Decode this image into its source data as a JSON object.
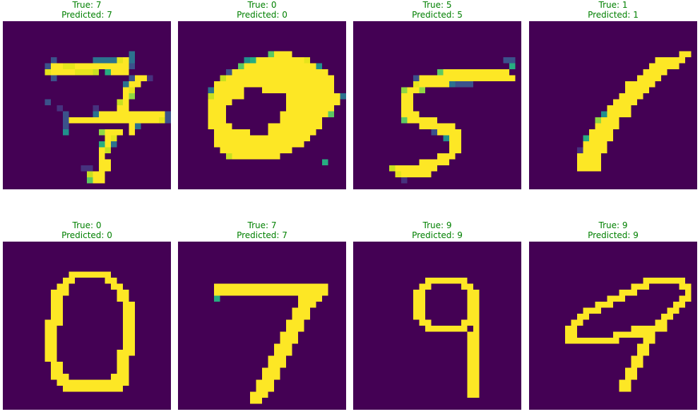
{
  "panels": [
    {
      "true_label": "True: 7",
      "pred_label": "Predicted: 7",
      "rows": [
        "............................",
        "............................",
        "............................",
        "............................",
        "............................",
        ".....................3......",
        "........2......33339#3......",
        ".......2##99#########2......",
        ".......9####9998.5###.......",
        "........2............2##1...",
        "....................3##.....",
        "....................#9......",
        "....................#7......",
        ".......2...........8#.......",
        ".........1.....1...##.......",
        "..........2....3###########2",
        "..........2###############92",
        "..........2..........#3.....",
        "..........4.....7###.#......",
        ".................#9.........",
        "................5#3.........",
        "................#8..........",
        "................#...........",
        "................##..........",
        ".............11.##..........",
        "..............8##...........",
        "..............6##...........",
        "............................"
      ]
    },
    {
      "true_label": "True: 0",
      "pred_label": "Predicted: 0",
      "rows": [
        "............................",
        "............................",
        "............................",
        "............................",
        "............................",
        "...............6###.........",
        "...........45########9......",
        "..........6############4....",
        "........2################...",
        ".......8##################..",
        "......####################..",
        ".....3#####...############..",
        ".....8#####.......#########3",
        ".....####.........#########.",
        ".....###..........########..",
        ".....###.........########6..",
        ".....###.........#######....",
        ".....####......#########....",
        "......######...########.....",
        "......################......",
        "......###############.......",
        ".......############.........",
        "........8########...........",
        "........................5...",
        "............................",
        "............................",
        "............................",
        "............................"
      ]
    },
    {
      "true_label": "True: 5",
      "pred_label": "Predicted: 5",
      "rows": [
        "............................",
        "............................",
        "............................",
        "............................",
        "............................",
        "............................",
        ".........................22.",
        "..........................5.",
        "..............6###########..",
        "..........2################.",
        "..........9#####3222........",
        "........7##7................",
        "........##..................",
        "........##..................",
        "........##..................",
        "........###.................",
        "........6#####..............",
        "...........######...........",
        ".............2####..........",
        "...............4##..........",
        "................##..........",
        "................##..........",
        "..............###...........",
        "...........#####............",
        "......8#######..............",
        ".......9#####...............",
        "........1...................",
        "............................"
      ]
    },
    {
      "true_label": "True: 1",
      "pred_label": "Predicted: 1",
      "rows": [
        "............................",
        "............................",
        "............................",
        "............................",
        "............................",
        ".........................##.",
        ".....................#####..",
        "....................#####...",
        "...................####.....",
        "..................####......",
        "................#####.......",
        "................####........",
        "...............####.........",
        "..............####..........",
        ".............####...........",
        "............4####...........",
        "...........7###.............",
        "...........####.............",
        "..........####..............",
        ".........5####..............",
        ".........####...............",
        "........1####...............",
        "........####................",
        "........####................",
        "........####................",
        "............................",
        "............................",
        "............................"
      ]
    },
    {
      "true_label": "True: 0",
      "pred_label": "Predicted: 0",
      "rows": [
        "............................",
        "............................",
        "............................",
        "............................",
        "............................",
        "...........#######..........",
        "..........##.....##.........",
        ".........##.......##........",
        "........###........##.......",
        "........##.........##.......",
        "........##..........##......",
        "........##..........##......",
        "........##..........##......",
        ".......###..........##......",
        ".......##...........##......",
        ".......##...........##......",
        ".......##...........##......",
        ".......##...........##......",
        ".......##..........###......",
        ".......##..........##.......",
        "........##.........##.......",
        "........##.........##.......",
        "........###.......###.......",
        ".........############.......",
        "..........##########........",
        "............................",
        "............................",
        "............................"
      ]
    },
    {
      "true_label": "True: 7",
      "pred_label": "Predicted: 7",
      "rows": [
        "............................",
        "............................",
        "............................",
        "............................",
        "............................",
        "............................",
        "............................",
        "......###################...",
        "......###################...",
        "......5.............####....",
        "....................###.....",
        "...................###......",
        "...................###......",
        "..................###.......",
        "..................###.......",
        ".................###........",
        ".................###........",
        "................###.........",
        "................###.........",
        "...............###..........",
        "...............###..........",
        "..............###...........",
        "..............###...........",
        ".............###............",
        ".............###............",
        "............###.............",
        "............##..............",
        "............................"
      ]
    },
    {
      "true_label": "True: 9",
      "pred_label": "Predicted: 9",
      "rows": [
        "............................",
        "............................",
        "............................",
        "............................",
        "............................",
        "............................",
        "............#######.........",
        "...........##.....##........",
        "..........##.......##.......",
        "..........##.......##.......",
        "..........##.......##.......",
        "..........##.......##.......",
        "..........##.......##.......",
        "...........##.....###.......",
        "............#######.#.......",
        "...................##.......",
        "...................##.......",
        "...................##.......",
        "...................##.......",
        "...................##.......",
        "...................##.......",
        "...................##.......",
        "...................##.......",
        "...................##.......",
        "...................##.......",
        "...................##.......",
        "............................",
        "............................"
      ]
    },
    {
      "true_label": "True: 9",
      "pred_label": "Predicted: 9",
      "rows": [
        "............................",
        "............................",
        "............................",
        "............................",
        "............................",
        "............................",
        "...................#######..",
        ".................###.....##.",
        "...............###........#.",
        ".............###.........##.",
        "...........###..........##..",
        ".........###...........##...",
        "........##............##....",
        ".......##............##.....",
        "......##.........######.....",
        "......##......#######.......",
        "......#########....##.......",
        "..................##........",
        "..................##........",
        ".................##.........",
        ".................##.........",
        "................##..........",
        "................##..........",
        "...............##...........",
        "...............##...........",
        "............................",
        "............................",
        "............................"
      ]
    }
  ]
}
